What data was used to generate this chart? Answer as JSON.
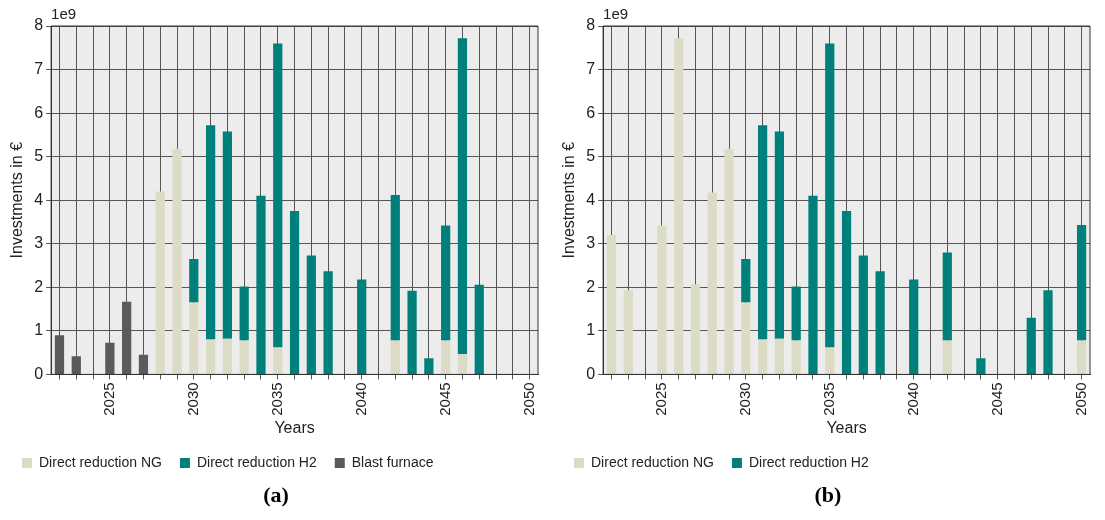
{
  "chart_data": [
    {
      "type": "bar",
      "title": "(a)",
      "xlabel": "Years",
      "ylabel": "Investments in €",
      "annotations": [
        "1e9"
      ],
      "categories": [
        null,
        null,
        null,
        "2025",
        null,
        null,
        null,
        null,
        "2030",
        null,
        null,
        null,
        null,
        "2035",
        null,
        null,
        null,
        null,
        "2040",
        null,
        null,
        null,
        null,
        "2045",
        null,
        null,
        null,
        null,
        "2050"
      ],
      "series": [
        {
          "name": "Direct reduction NG",
          "color": "#dcdcc6",
          "values": [
            null,
            null,
            null,
            null,
            null,
            null,
            4.2,
            5.18,
            1.65,
            0.8,
            0.82,
            0.78,
            null,
            0.62,
            null,
            null,
            null,
            null,
            null,
            null,
            0.78,
            null,
            null,
            0.78,
            0.47,
            null,
            null,
            null,
            null
          ]
        },
        {
          "name": "Direct reduction H2",
          "color": "#00807a",
          "values": [
            null,
            null,
            null,
            null,
            null,
            null,
            null,
            null,
            1.0,
            4.92,
            4.76,
            1.24,
            4.1,
            6.98,
            3.75,
            2.73,
            2.37,
            null,
            2.18,
            null,
            3.34,
            1.92,
            0.37,
            2.64,
            7.25,
            2.06,
            null,
            null,
            null
          ]
        },
        {
          "name": "Blast furnace",
          "color": "#5a5a5a",
          "values": [
            0.9,
            0.42,
            null,
            0.73,
            1.67,
            0.45,
            null,
            null,
            null,
            null,
            null,
            null,
            null,
            null,
            null,
            null,
            null,
            null,
            null,
            null,
            null,
            null,
            null,
            null,
            null,
            null,
            null,
            null,
            null
          ]
        }
      ],
      "stacked": true,
      "ylim": [
        0,
        8
      ],
      "yticks": [
        0,
        1,
        2,
        3,
        4,
        5,
        6,
        7,
        8
      ],
      "grid": true,
      "legend": "bottom"
    },
    {
      "type": "bar",
      "title": "(b)",
      "xlabel": "Years",
      "ylabel": "Investments in €",
      "annotations": [
        "1e9"
      ],
      "categories": [
        null,
        null,
        null,
        "2025",
        null,
        null,
        null,
        null,
        "2030",
        null,
        null,
        null,
        null,
        "2035",
        null,
        null,
        null,
        null,
        "2040",
        null,
        null,
        null,
        null,
        "2045",
        null,
        null,
        null,
        null,
        "2050"
      ],
      "series": [
        {
          "name": "Direct reduction NG",
          "color": "#dcdcc6",
          "values": [
            3.2,
            1.93,
            null,
            3.42,
            7.72,
            2.07,
            4.18,
            5.18,
            1.65,
            0.8,
            0.82,
            0.78,
            null,
            0.62,
            null,
            null,
            null,
            null,
            null,
            null,
            0.78,
            null,
            null,
            null,
            null,
            null,
            null,
            null,
            0.78
          ]
        },
        {
          "name": "Direct reduction H2",
          "color": "#00807a",
          "values": [
            null,
            null,
            null,
            null,
            null,
            null,
            null,
            null,
            1.0,
            4.92,
            4.76,
            1.24,
            4.1,
            6.98,
            3.75,
            2.73,
            2.37,
            null,
            2.18,
            null,
            2.02,
            null,
            0.37,
            null,
            null,
            1.3,
            1.93,
            null,
            2.65
          ]
        }
      ],
      "stacked": true,
      "ylim": [
        0,
        8
      ],
      "yticks": [
        0,
        1,
        2,
        3,
        4,
        5,
        6,
        7,
        8
      ],
      "grid": true,
      "legend": "bottom"
    }
  ]
}
